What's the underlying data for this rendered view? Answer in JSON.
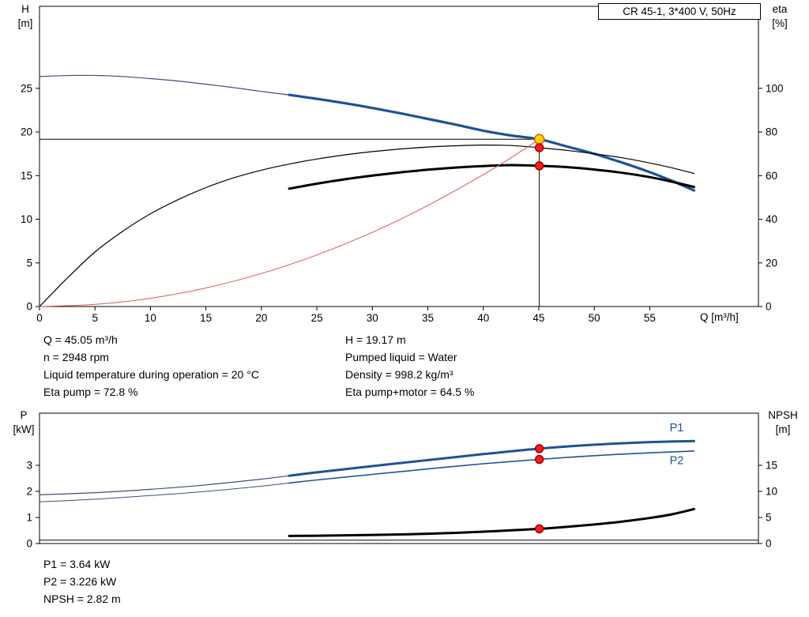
{
  "title_box": "CR 45-1, 3*400 V, 50Hz",
  "labels": {
    "h_axis": {
      "line1": "H",
      "line2": "[m]"
    },
    "eta_axis": {
      "line1": "eta",
      "line2": "[%]"
    },
    "q_axis": "Q [m³/h]",
    "p_axis": {
      "line1": "P",
      "line2": "[kW]"
    },
    "npsh_axis": {
      "line1": "NPSH",
      "line2": "[m]"
    }
  },
  "info_top": {
    "left": [
      "Q = 45.05 m³/h",
      "n = 2948 rpm",
      "Liquid temperature during operation = 20 °C",
      "Eta pump = 72.8 %"
    ],
    "right": [
      "H = 19.17 m",
      "Pumped liquid = Water",
      "Density = 998.2 kg/m³",
      "Eta pump+motor = 64.5 %"
    ]
  },
  "info_bottom": [
    "P1 = 3.64 kW",
    "P2 = 3.226 kW",
    "NPSH = 2.82 m"
  ],
  "colors": {
    "curve_blue": "#1d5296",
    "curve_blue_thin": "#3b4f79",
    "curve_black": "#000000",
    "system_red": "#dd5555",
    "marker_red": "#ff1a1a",
    "duty_yellow": "#ffd700"
  },
  "chart_data": [
    {
      "id": "top",
      "type": "line",
      "title": "CR 45-1, 3*400 V, 50Hz",
      "axes": {
        "x": {
          "label": "Q [m³/h]",
          "min": 0,
          "max": 64.8,
          "ticks": [
            0,
            5,
            10,
            15,
            20,
            25,
            30,
            35,
            40,
            45,
            50,
            55
          ],
          "labeled": true
        },
        "y_left": {
          "label": "H [m]",
          "min": 0,
          "max": 34.4,
          "ticks": [
            0,
            5,
            10,
            15,
            20,
            25
          ]
        },
        "y_right": {
          "label": "eta [%]",
          "min": 0,
          "max": 137.6,
          "ticks": [
            0,
            20,
            40,
            60,
            80,
            100
          ]
        }
      },
      "ref_lines": [
        {
          "name": "duty-h-line",
          "orient": "h",
          "axis": "left",
          "value": 19.17,
          "x0": 0,
          "x1": 45.05,
          "color": "#000000",
          "width": 1
        },
        {
          "name": "duty-q-line",
          "orient": "v",
          "axis": "left",
          "value": 45.05,
          "y0": 0,
          "y1": 19.17,
          "color": "#000000",
          "width": 1
        }
      ],
      "series": [
        {
          "name": "hq-curve-thin",
          "axis": "left",
          "color": "#3b4f79",
          "width": 1.2,
          "x": [
            0,
            2,
            4,
            6,
            8,
            10,
            12,
            14,
            16,
            18,
            20,
            22.5
          ],
          "y": [
            26.35,
            26.45,
            26.5,
            26.45,
            26.32,
            26.12,
            25.9,
            25.62,
            25.32,
            25.0,
            24.65,
            24.25
          ]
        },
        {
          "name": "hq-curve",
          "axis": "left",
          "color": "#1d5296",
          "width": 3.2,
          "x": [
            22.5,
            25,
            27.5,
            30,
            32.5,
            35,
            37.5,
            40,
            42.5,
            45.05,
            47.5,
            50,
            52.5,
            55,
            57,
            59
          ],
          "y": [
            24.25,
            23.8,
            23.3,
            22.75,
            22.15,
            21.5,
            20.85,
            20.15,
            19.6,
            19.17,
            18.35,
            17.5,
            16.5,
            15.4,
            14.4,
            13.3
          ]
        },
        {
          "name": "eta-pump-curve",
          "axis": "right",
          "color": "#000000",
          "width": 1.2,
          "x": [
            0,
            2.5,
            5,
            7.5,
            10,
            12.5,
            15,
            17.5,
            20,
            22.5,
            25,
            27.5,
            30,
            32.5,
            35,
            37.5,
            40,
            42.5,
            45.05,
            47.5,
            50,
            52.5,
            55,
            57,
            59
          ],
          "y": [
            0,
            13,
            25,
            34.5,
            42.5,
            49,
            54.5,
            59,
            62.5,
            65.3,
            67.6,
            69.5,
            71,
            72.2,
            73.1,
            73.7,
            74,
            73.8,
            72.8,
            71.6,
            70,
            68.2,
            65.8,
            63.6,
            61
          ]
        },
        {
          "name": "eta-pump-motor-curve",
          "axis": "right",
          "color": "#000000",
          "width": 3,
          "x": [
            22.5,
            25,
            27.5,
            30,
            32.5,
            35,
            37.5,
            40,
            42.5,
            45.05,
            47.5,
            50,
            52.5,
            55,
            57,
            59
          ],
          "y": [
            54,
            56.3,
            58.3,
            60,
            61.5,
            62.7,
            63.7,
            64.4,
            64.8,
            64.5,
            63.9,
            62.8,
            61.3,
            59.3,
            57.2,
            54.8
          ]
        },
        {
          "name": "system-curve",
          "axis": "left",
          "color": "#dd5555",
          "width": 1,
          "x": [
            0,
            5,
            10,
            15,
            20,
            25,
            30,
            35,
            40,
            42.5,
            45.05
          ],
          "y": [
            0,
            0.24,
            0.94,
            2.13,
            3.78,
            5.91,
            8.5,
            11.58,
            15.11,
            17.05,
            19.17
          ]
        }
      ],
      "markers": [
        {
          "name": "duty-point",
          "x": 45.05,
          "y": 19.17,
          "axis": "left",
          "r": 6,
          "fill": "#ffd700",
          "stroke": "#e05a00"
        },
        {
          "name": "eta-pump-point",
          "x": 45.05,
          "y": 72.8,
          "axis": "right",
          "r": 5,
          "fill": "#ff1a1a",
          "stroke": "#990000"
        },
        {
          "name": "eta-pump-motor-point",
          "x": 45.05,
          "y": 64.5,
          "axis": "right",
          "r": 5,
          "fill": "#ff1a1a",
          "stroke": "#990000"
        }
      ],
      "annotations": []
    },
    {
      "id": "bottom",
      "type": "line",
      "title": "",
      "axes": {
        "x": {
          "label": "",
          "min": 0,
          "max": 64.8,
          "ticks": [],
          "labeled": false
        },
        "y_left": {
          "label": "P [kW]",
          "min": 0,
          "max": 5,
          "ticks": [
            0,
            1,
            2,
            3
          ]
        },
        "y_right": {
          "label": "NPSH [m]",
          "min": 0,
          "max": 25,
          "ticks": [
            0,
            5,
            10,
            15
          ]
        }
      },
      "ref_lines": [],
      "series": [
        {
          "name": "p1-curve-thin",
          "axis": "left",
          "color": "#3b4f79",
          "width": 1.2,
          "x": [
            0,
            5,
            10,
            15,
            20,
            22.5
          ],
          "y": [
            1.87,
            1.95,
            2.08,
            2.25,
            2.47,
            2.6
          ]
        },
        {
          "name": "p1-curve",
          "axis": "left",
          "color": "#1d5296",
          "width": 3,
          "x": [
            22.5,
            25,
            30,
            35,
            40,
            45.05,
            50,
            55,
            59
          ],
          "y": [
            2.6,
            2.73,
            2.97,
            3.2,
            3.43,
            3.64,
            3.79,
            3.89,
            3.93
          ]
        },
        {
          "name": "p2-curve-thin",
          "axis": "left",
          "color": "#3b4f79",
          "width": 1,
          "x": [
            0,
            5,
            10,
            15,
            20,
            22.5
          ],
          "y": [
            1.6,
            1.7,
            1.84,
            2.0,
            2.2,
            2.32
          ]
        },
        {
          "name": "p2-curve",
          "axis": "left",
          "color": "#1d5296",
          "width": 1.6,
          "x": [
            22.5,
            25,
            30,
            35,
            40,
            45.05,
            50,
            55,
            59
          ],
          "y": [
            2.32,
            2.44,
            2.65,
            2.86,
            3.06,
            3.226,
            3.37,
            3.48,
            3.55
          ]
        },
        {
          "name": "npsh-zero-line",
          "axis": "right",
          "color": "#000000",
          "width": 1,
          "x": [
            0,
            64.8
          ],
          "y": [
            0.65,
            0.65
          ]
        },
        {
          "name": "npsh-curve",
          "axis": "right",
          "color": "#000000",
          "width": 3,
          "x": [
            22.5,
            25,
            27.5,
            30,
            32.5,
            35,
            37.5,
            40,
            42.5,
            45.05,
            47.5,
            50,
            52.5,
            55,
            57,
            59
          ],
          "y": [
            1.45,
            1.5,
            1.57,
            1.65,
            1.75,
            1.88,
            2.05,
            2.27,
            2.53,
            2.82,
            3.2,
            3.65,
            4.2,
            4.9,
            5.6,
            6.6
          ]
        }
      ],
      "markers": [
        {
          "name": "p1-point",
          "x": 45.05,
          "y": 3.64,
          "axis": "left",
          "r": 5,
          "fill": "#ff1a1a",
          "stroke": "#990000"
        },
        {
          "name": "p2-point",
          "x": 45.05,
          "y": 3.226,
          "axis": "left",
          "r": 5,
          "fill": "#ff1a1a",
          "stroke": "#990000"
        },
        {
          "name": "npsh-point",
          "x": 45.05,
          "y": 2.82,
          "axis": "right",
          "r": 5,
          "fill": "#ff1a1a",
          "stroke": "#990000"
        }
      ],
      "annotations": [
        {
          "name": "p1-label",
          "text": "P1",
          "x": 56.8,
          "y": 4.3,
          "axis": "left",
          "color": "#1d5296"
        },
        {
          "name": "p2-label",
          "text": "P2",
          "x": 56.8,
          "y": 3.05,
          "axis": "left",
          "color": "#1d5296"
        }
      ]
    }
  ]
}
